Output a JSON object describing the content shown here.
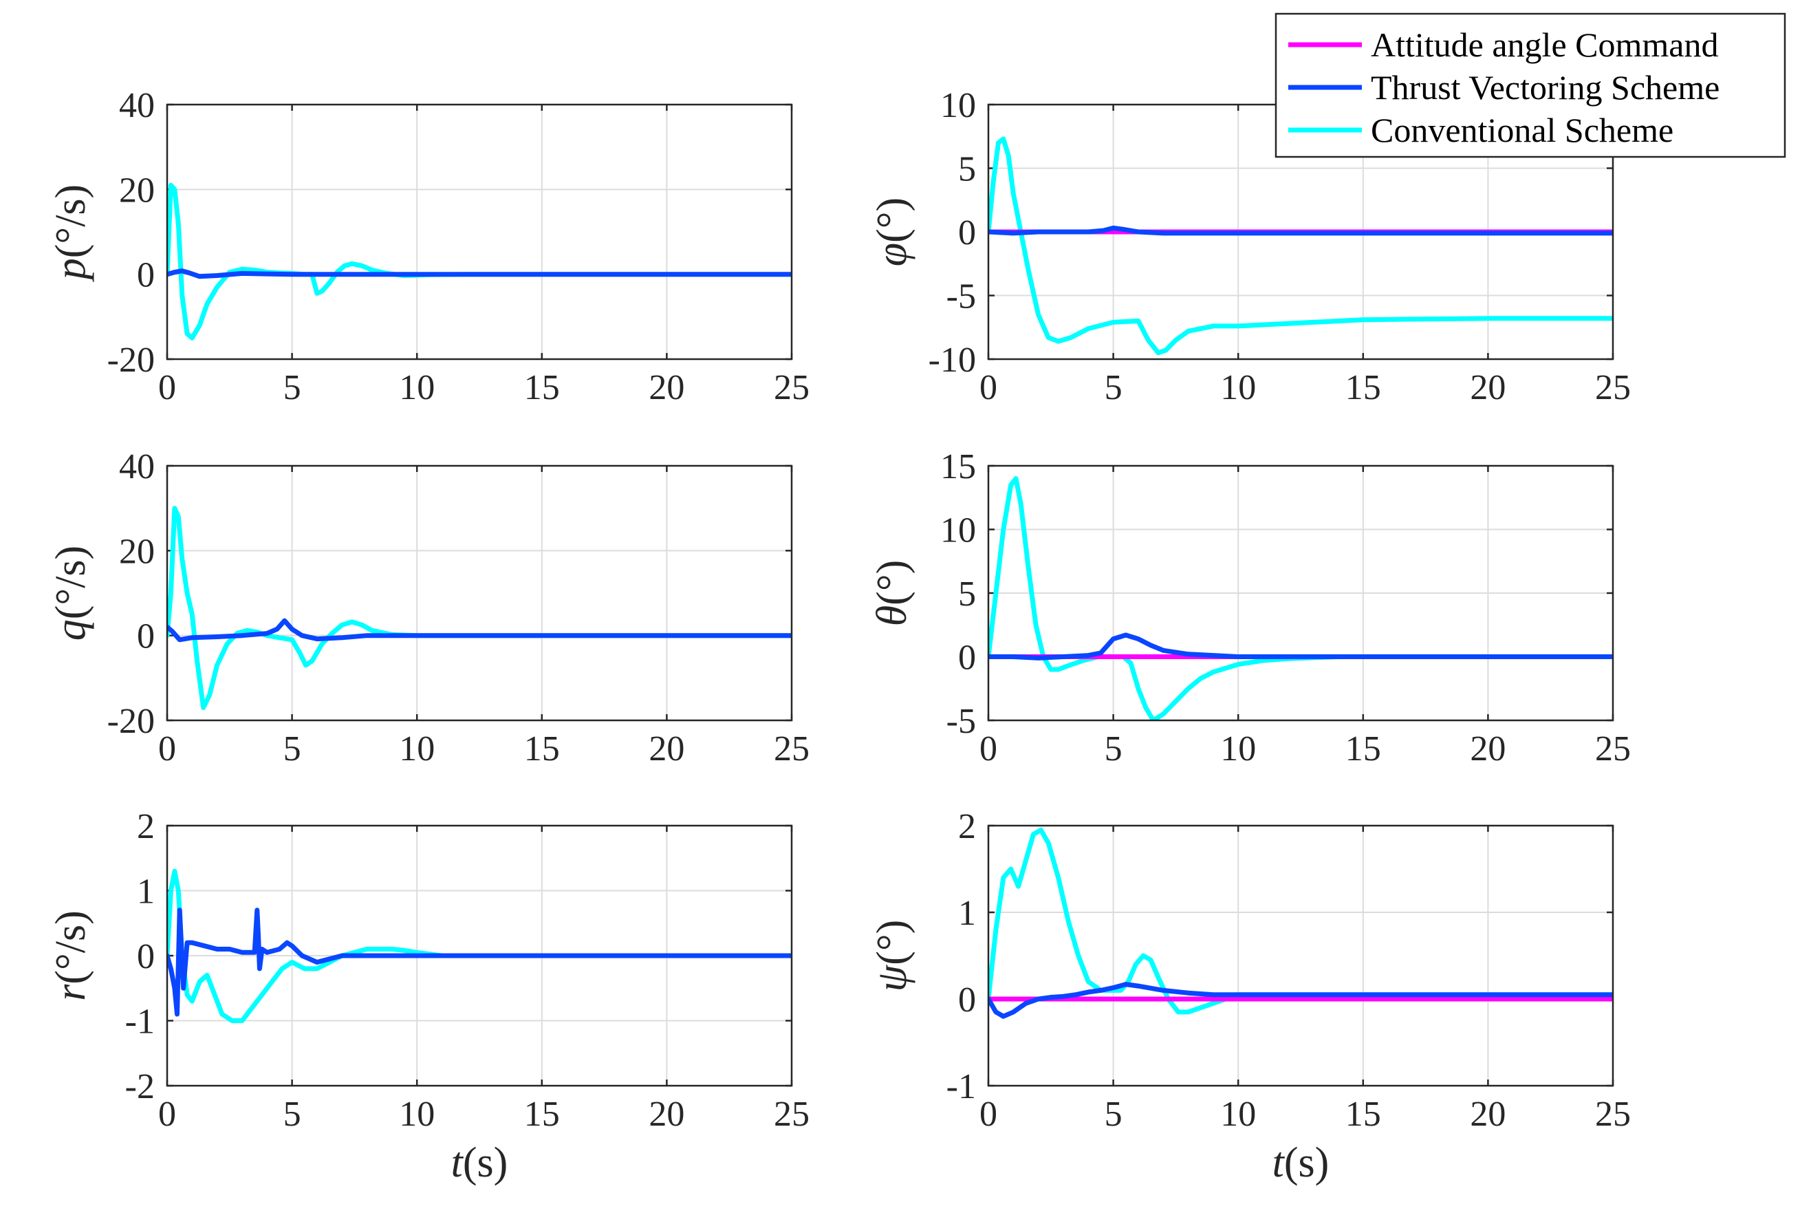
{
  "chart_data": [
    {
      "type": "line",
      "ylabel": "p(°/s)",
      "ylabel_var": "p",
      "ylabel_unit": "(°/s)",
      "xlabel": "",
      "xlim": [
        0,
        25
      ],
      "ylim": [
        -20,
        40
      ],
      "xticks": [
        "0",
        "5",
        "10",
        "15",
        "20",
        "25"
      ],
      "yticks": [
        "40",
        "20",
        "0",
        "-20"
      ],
      "grid": true,
      "series": [
        {
          "name": "Conventional Scheme",
          "color": "#00ffff",
          "x": [
            0,
            0.15,
            0.3,
            0.45,
            0.6,
            0.8,
            1.0,
            1.3,
            1.6,
            2.0,
            2.5,
            3.0,
            3.5,
            4.0,
            4.5,
            5.0,
            5.5,
            5.8,
            6.0,
            6.2,
            6.5,
            6.8,
            7.1,
            7.4,
            7.8,
            8.2,
            8.8,
            9.5,
            10.5,
            12,
            15,
            25
          ],
          "y": [
            0,
            21,
            20,
            12,
            -5,
            -14,
            -15,
            -12,
            -7,
            -3,
            0.5,
            1.2,
            1.0,
            0.5,
            0.3,
            0.2,
            0,
            0,
            -4.5,
            -4,
            -2,
            0.5,
            2,
            2.5,
            2,
            1,
            0.2,
            -0.3,
            -0.1,
            0,
            0,
            0
          ]
        },
        {
          "name": "Thrust Vectoring Scheme",
          "color": "#0a46ff",
          "x": [
            0,
            0.3,
            0.6,
            0.9,
            1.3,
            2.0,
            3.0,
            4.0,
            5.0,
            6.0,
            7.0,
            25
          ],
          "y": [
            0,
            0.5,
            0.8,
            0.3,
            -0.5,
            -0.3,
            0.2,
            0.1,
            0,
            0,
            0,
            0
          ]
        }
      ]
    },
    {
      "type": "line",
      "ylabel": "φ(°)",
      "ylabel_var": "φ",
      "ylabel_unit": "(°)",
      "xlabel": "",
      "xlim": [
        0,
        25
      ],
      "ylim": [
        -10,
        10
      ],
      "xticks": [
        "0",
        "5",
        "10",
        "15",
        "20",
        "25"
      ],
      "yticks": [
        "10",
        "5",
        "0",
        "-5",
        "-10"
      ],
      "grid": true,
      "series": [
        {
          "name": "Conventional Scheme",
          "color": "#00ffff",
          "x": [
            0,
            0.2,
            0.4,
            0.6,
            0.8,
            1.0,
            1.3,
            1.6,
            2.0,
            2.4,
            2.8,
            3.3,
            4.0,
            5.0,
            6.0,
            6.4,
            6.8,
            7.1,
            7.5,
            8.0,
            9.0,
            10.0,
            12,
            15,
            20,
            25
          ],
          "y": [
            0,
            4,
            7,
            7.3,
            6,
            3,
            0,
            -3,
            -6.5,
            -8.3,
            -8.6,
            -8.3,
            -7.6,
            -7.1,
            -7.0,
            -8.5,
            -9.5,
            -9.3,
            -8.5,
            -7.8,
            -7.4,
            -7.4,
            -7.2,
            -6.9,
            -6.8,
            -6.8
          ]
        },
        {
          "name": "Thrust Vectoring Scheme",
          "color": "#0a46ff",
          "x": [
            0,
            1.0,
            2.0,
            3.0,
            4.0,
            4.6,
            5.0,
            5.4,
            6.0,
            7.0,
            25
          ],
          "y": [
            0,
            -0.1,
            0,
            0,
            0,
            0.1,
            0.3,
            0.2,
            0,
            -0.1,
            -0.1
          ]
        },
        {
          "name": "Attitude angle Command",
          "color": "#ff00ff",
          "x": [
            0,
            25
          ],
          "y": [
            0,
            0
          ]
        }
      ]
    },
    {
      "type": "line",
      "ylabel": "q(°/s)",
      "ylabel_var": "q",
      "ylabel_unit": "(°/s)",
      "xlabel": "",
      "xlim": [
        0,
        25
      ],
      "ylim": [
        -20,
        40
      ],
      "xticks": [
        "0",
        "5",
        "10",
        "15",
        "20",
        "25"
      ],
      "yticks": [
        "40",
        "20",
        "0",
        "-20"
      ],
      "grid": true,
      "series": [
        {
          "name": "Conventional Scheme",
          "color": "#00ffff",
          "x": [
            0,
            0.15,
            0.3,
            0.45,
            0.6,
            0.8,
            1.0,
            1.2,
            1.45,
            1.7,
            2.0,
            2.4,
            2.8,
            3.2,
            3.6,
            4.0,
            4.5,
            5.0,
            5.3,
            5.55,
            5.8,
            6.2,
            6.6,
            7.0,
            7.4,
            7.8,
            8.2,
            9.0,
            10.0,
            12,
            25
          ],
          "y": [
            0,
            10,
            30,
            28,
            18,
            10,
            5,
            -6,
            -17,
            -14,
            -7,
            -2,
            0.5,
            1.2,
            0.8,
            0,
            -0.5,
            -1,
            -4,
            -7,
            -6,
            -2,
            0.5,
            2.5,
            3.2,
            2.5,
            1.2,
            0.2,
            0,
            0,
            0
          ]
        },
        {
          "name": "Thrust Vectoring Scheme",
          "color": "#0a46ff",
          "x": [
            0,
            0.2,
            0.5,
            1.0,
            2.0,
            3.0,
            4.0,
            4.4,
            4.7,
            5.0,
            5.4,
            6.0,
            7.0,
            8.0,
            25
          ],
          "y": [
            2,
            1,
            -1,
            -0.5,
            -0.3,
            0,
            0.5,
            1.5,
            3.5,
            1.5,
            0,
            -0.8,
            -0.5,
            0,
            0
          ]
        }
      ]
    },
    {
      "type": "line",
      "ylabel": "θ(°)",
      "ylabel_var": "θ",
      "ylabel_unit": "(°)",
      "xlabel": "",
      "xlim": [
        0,
        25
      ],
      "ylim": [
        -5,
        15
      ],
      "xticks": [
        "0",
        "5",
        "10",
        "15",
        "20",
        "25"
      ],
      "yticks": [
        "15",
        "10",
        "5",
        "0",
        "-5"
      ],
      "grid": true,
      "series": [
        {
          "name": "Conventional Scheme",
          "color": "#00ffff",
          "x": [
            0,
            0.3,
            0.6,
            0.9,
            1.1,
            1.3,
            1.6,
            1.9,
            2.2,
            2.5,
            2.8,
            3.2,
            3.8,
            4.4,
            5.0,
            5.4,
            5.7,
            6.0,
            6.3,
            6.6,
            7.0,
            7.5,
            8.0,
            8.5,
            9.0,
            10.0,
            11,
            12,
            14,
            17,
            25
          ],
          "y": [
            0,
            5,
            10,
            13.5,
            14,
            12,
            7,
            2.5,
            0,
            -1,
            -1,
            -0.7,
            -0.3,
            0,
            0,
            0,
            -0.5,
            -2.5,
            -4,
            -5,
            -4.5,
            -3.5,
            -2.5,
            -1.7,
            -1.2,
            -0.6,
            -0.3,
            -0.15,
            0,
            0,
            0
          ]
        },
        {
          "name": "Thrust Vectoring Scheme",
          "color": "#0a46ff",
          "x": [
            0,
            1,
            2,
            3,
            4,
            4.5,
            5.0,
            5.5,
            6.0,
            6.5,
            7.0,
            8.0,
            9.0,
            10.0,
            11,
            25
          ],
          "y": [
            0,
            0,
            -0.1,
            0,
            0.1,
            0.3,
            1.4,
            1.7,
            1.4,
            0.9,
            0.5,
            0.2,
            0.1,
            0,
            0,
            0
          ]
        },
        {
          "name": "Attitude angle Command",
          "color": "#ff00ff",
          "x": [
            0,
            25
          ],
          "y": [
            0,
            0
          ]
        }
      ]
    },
    {
      "type": "line",
      "ylabel": "r(°/s)",
      "ylabel_var": "r",
      "ylabel_unit": "(°/s)",
      "xlabel": "t(s)",
      "xlabel_var": "t",
      "xlabel_unit": "(s)",
      "xlim": [
        0,
        25
      ],
      "ylim": [
        -2,
        2
      ],
      "xticks": [
        "0",
        "5",
        "10",
        "15",
        "20",
        "25"
      ],
      "yticks": [
        "2",
        "1",
        "0",
        "-1",
        "-2"
      ],
      "grid": true,
      "series": [
        {
          "name": "Conventional Scheme",
          "color": "#00ffff",
          "x": [
            0,
            0.15,
            0.3,
            0.45,
            0.6,
            0.8,
            1.0,
            1.3,
            1.6,
            1.9,
            2.2,
            2.6,
            3.0,
            3.4,
            3.8,
            4.2,
            4.6,
            5.0,
            5.5,
            6.0,
            6.5,
            7.0,
            7.5,
            8.0,
            8.5,
            9.0,
            9.5,
            10.0,
            11,
            12,
            25
          ],
          "y": [
            0,
            1.0,
            1.3,
            1.0,
            0,
            -0.6,
            -0.7,
            -0.4,
            -0.3,
            -0.6,
            -0.9,
            -1.0,
            -1.0,
            -0.8,
            -0.6,
            -0.4,
            -0.2,
            -0.1,
            -0.2,
            -0.2,
            -0.1,
            0,
            0.05,
            0.1,
            0.1,
            0.1,
            0.08,
            0.05,
            0,
            0,
            0
          ]
        },
        {
          "name": "Thrust Vectoring Scheme",
          "color": "#0a46ff",
          "x": [
            0,
            0.15,
            0.3,
            0.4,
            0.5,
            0.55,
            0.65,
            0.8,
            1.0,
            1.5,
            2.0,
            2.5,
            3.0,
            3.5,
            3.6,
            3.65,
            3.7,
            3.8,
            4.0,
            4.5,
            4.8,
            5.0,
            5.4,
            6.0,
            7.0,
            8.0,
            10,
            25
          ],
          "y": [
            0,
            -0.2,
            -0.5,
            -0.9,
            0.7,
            0.3,
            -0.5,
            0.2,
            0.2,
            0.15,
            0.1,
            0.1,
            0.05,
            0.05,
            0.7,
            0.3,
            -0.2,
            0.1,
            0.05,
            0.1,
            0.2,
            0.15,
            0,
            -0.1,
            0,
            0,
            0,
            0
          ]
        }
      ]
    },
    {
      "type": "line",
      "ylabel": "ψ(°)",
      "ylabel_var": "ψ",
      "ylabel_unit": "(°)",
      "xlabel": "t(s)",
      "xlabel_var": "t",
      "xlabel_unit": "(s)",
      "xlim": [
        0,
        25
      ],
      "ylim": [
        -1,
        2
      ],
      "xticks": [
        "0",
        "5",
        "10",
        "15",
        "20",
        "25"
      ],
      "yticks": [
        "2",
        "1",
        "0",
        "-1"
      ],
      "grid": true,
      "series": [
        {
          "name": "Conventional Scheme",
          "color": "#00ffff",
          "x": [
            0,
            0.3,
            0.6,
            0.9,
            1.2,
            1.5,
            1.8,
            2.1,
            2.4,
            2.8,
            3.2,
            3.6,
            4.0,
            4.5,
            5.0,
            5.3,
            5.6,
            5.9,
            6.2,
            6.5,
            6.8,
            7.2,
            7.6,
            8.0,
            8.5,
            9.0,
            9.5,
            10.0,
            11,
            13,
            25
          ],
          "y": [
            0,
            0.8,
            1.4,
            1.5,
            1.3,
            1.6,
            1.9,
            1.95,
            1.8,
            1.4,
            0.9,
            0.5,
            0.2,
            0.1,
            0.1,
            0.1,
            0.2,
            0.4,
            0.5,
            0.45,
            0.25,
            0,
            -0.15,
            -0.15,
            -0.1,
            -0.05,
            0,
            0.05,
            0.05,
            0.05,
            0.05
          ]
        },
        {
          "name": "Thrust Vectoring Scheme",
          "color": "#0a46ff",
          "x": [
            0,
            0.3,
            0.6,
            1.0,
            1.5,
            2.0,
            2.5,
            3.0,
            3.5,
            4.0,
            4.5,
            5.0,
            5.5,
            6.0,
            7.0,
            8.0,
            9.0,
            10,
            25
          ],
          "y": [
            0,
            -0.15,
            -0.2,
            -0.15,
            -0.05,
            0,
            0.02,
            0.03,
            0.05,
            0.08,
            0.1,
            0.13,
            0.17,
            0.15,
            0.1,
            0.07,
            0.05,
            0.05,
            0.05
          ]
        },
        {
          "name": "Attitude angle Command",
          "color": "#ff00ff",
          "x": [
            0,
            25
          ],
          "y": [
            0,
            0
          ]
        }
      ]
    }
  ],
  "legend": {
    "position": "top-right",
    "items": [
      {
        "label": "Attitude angle Command",
        "color": "#ff00ff"
      },
      {
        "label": "Thrust Vectoring Scheme",
        "color": "#0a46ff"
      },
      {
        "label": "Conventional Scheme",
        "color": "#00ffff"
      }
    ]
  }
}
